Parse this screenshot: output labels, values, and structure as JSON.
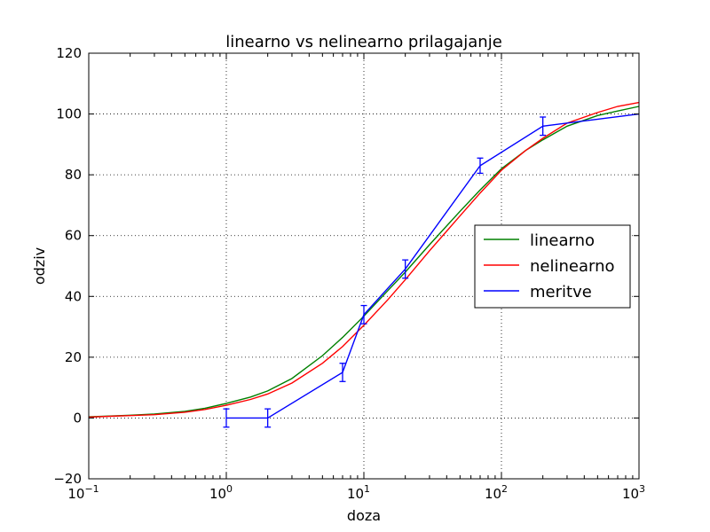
{
  "chart_data": {
    "type": "line",
    "title": "linearno vs nelinearno prilagajanje",
    "xlabel": "doza",
    "ylabel": "odziv",
    "xscale": "log",
    "xlim": [
      0.1,
      1000
    ],
    "ylim": [
      -20,
      120
    ],
    "grid": true,
    "legend_position": "center-right",
    "x_tick_labels": [
      {
        "value": 0.1,
        "base": "10",
        "exp": "-1"
      },
      {
        "value": 1,
        "base": "10",
        "exp": "0"
      },
      {
        "value": 10,
        "base": "10",
        "exp": "1"
      },
      {
        "value": 100,
        "base": "10",
        "exp": "2"
      },
      {
        "value": 1000,
        "base": "10",
        "exp": "3"
      }
    ],
    "y_ticks": [
      -20,
      0,
      20,
      40,
      60,
      80,
      100,
      120
    ],
    "series": [
      {
        "name": "linearno",
        "color": "#008000",
        "kind": "curve",
        "x": [
          0.1,
          0.15,
          0.2,
          0.3,
          0.5,
          0.7,
          1,
          1.5,
          2,
          3,
          5,
          7,
          10,
          15,
          20,
          30,
          50,
          70,
          100,
          150,
          200,
          300,
          500,
          700,
          1000
        ],
        "y": [
          0.4,
          0.7,
          0.9,
          1.3,
          2.2,
          3.2,
          4.8,
          6.9,
          8.9,
          13,
          20.5,
          26.5,
          33.5,
          42,
          48,
          57,
          68,
          75,
          82,
          88,
          91.5,
          96,
          99.5,
          101,
          102.5
        ]
      },
      {
        "name": "nelinearno",
        "color": "#ff0000",
        "kind": "curve",
        "x": [
          0.1,
          0.15,
          0.2,
          0.3,
          0.5,
          0.7,
          1,
          1.5,
          2,
          3,
          5,
          7,
          10,
          15,
          20,
          30,
          50,
          70,
          100,
          150,
          200,
          300,
          500,
          700,
          1000
        ],
        "y": [
          0.3,
          0.6,
          0.8,
          1.1,
          1.9,
          2.8,
          4.2,
          6.1,
          7.9,
          11.5,
          18,
          23.5,
          30.5,
          39,
          45.5,
          55,
          66.5,
          74,
          81.5,
          88,
          92,
          97,
          100.5,
          102.5,
          103.8
        ]
      },
      {
        "name": "meritve",
        "color": "#0000ff",
        "kind": "measured",
        "x": [
          1,
          2,
          7,
          10,
          20,
          70,
          200,
          1000
        ],
        "y": [
          0,
          0,
          15,
          34,
          49,
          83,
          96,
          100
        ],
        "yerr": [
          3,
          3,
          3,
          3,
          3,
          2.5,
          3,
          0
        ]
      }
    ]
  }
}
